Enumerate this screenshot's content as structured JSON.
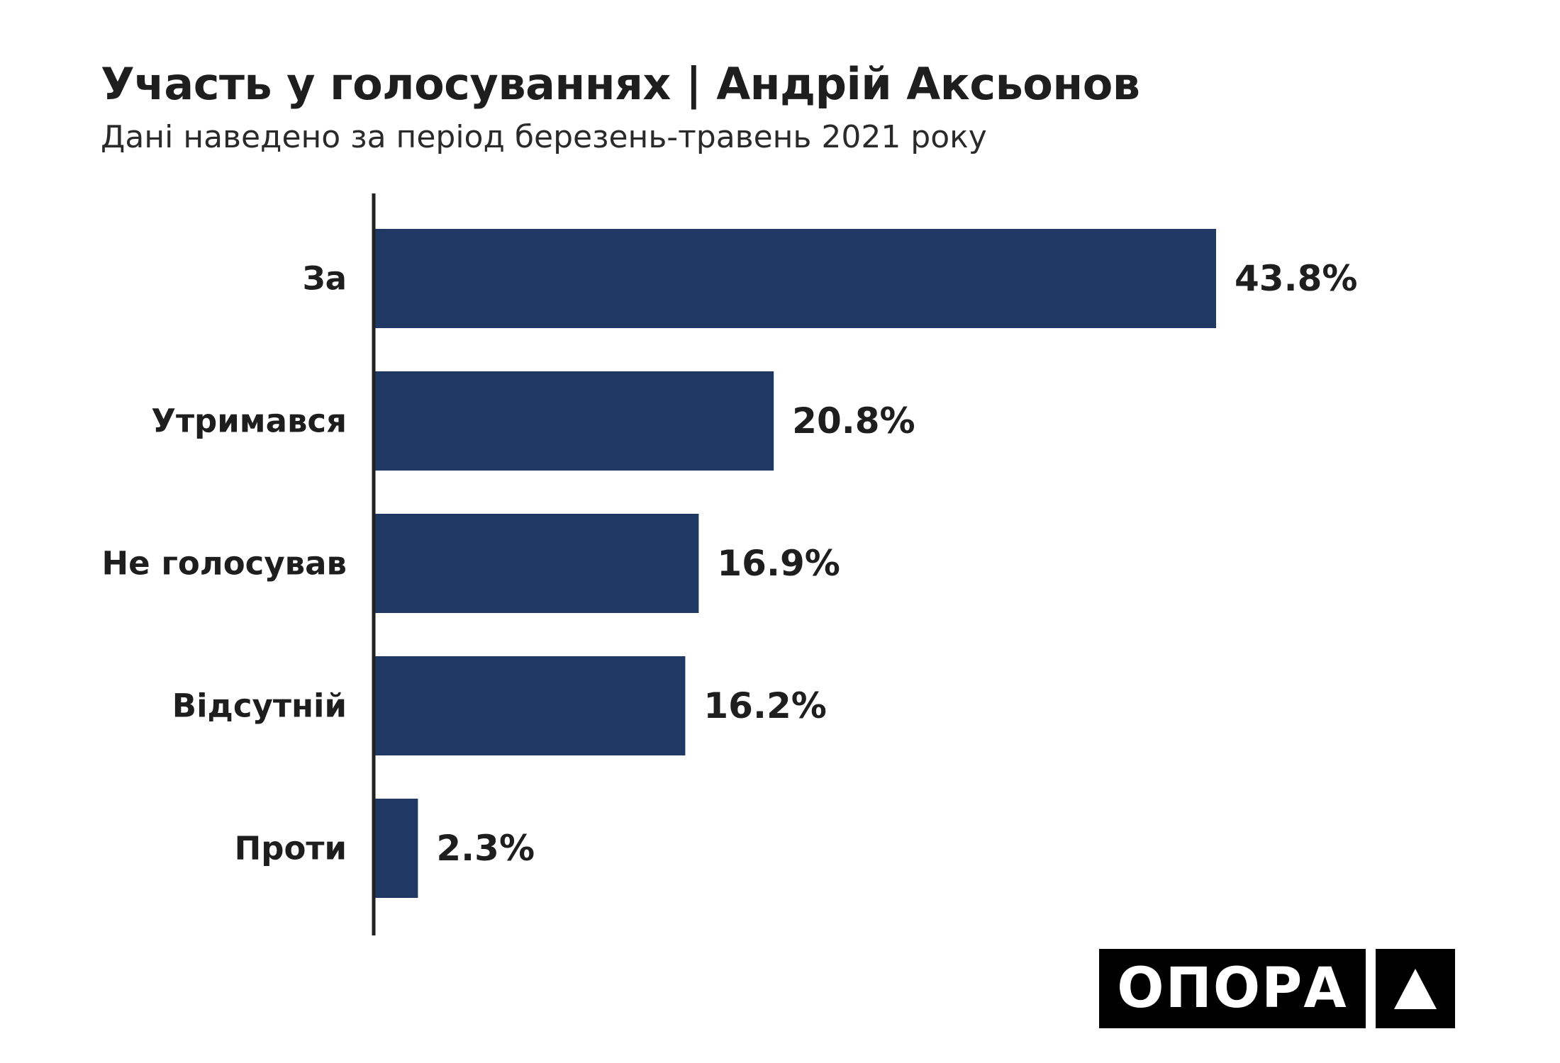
{
  "chart_data": {
    "type": "bar",
    "orientation": "horizontal",
    "title": "Участь у голосуваннях | Андрій Аксьонов",
    "subtitle": "Дані наведено за період березень-травень 2021 року",
    "categories": [
      "За",
      "Утримався",
      "Не голосував",
      "Відсутній",
      "Проти"
    ],
    "values": [
      43.8,
      20.8,
      16.9,
      16.2,
      2.3
    ],
    "value_labels": [
      "43.8%",
      "20.8%",
      "16.9%",
      "16.2%",
      "2.3%"
    ],
    "xlim": [
      0,
      50
    ],
    "grid": false,
    "legend": "none",
    "bar_color": "#1f3864"
  },
  "logo": {
    "text": "ОПОРА",
    "mark_icon": "triangle-icon"
  }
}
